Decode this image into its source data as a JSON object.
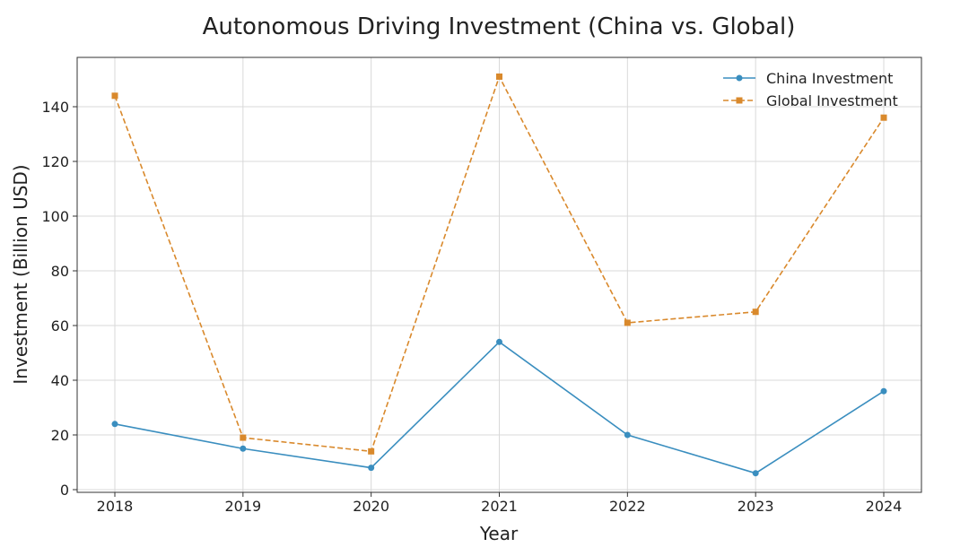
{
  "chart_data": {
    "type": "line",
    "title": "Autonomous Driving Investment (China vs. Global)",
    "xlabel": "Year",
    "ylabel": "Investment (Billion USD)",
    "x": [
      "2018",
      "2019",
      "2020",
      "2021",
      "2022",
      "2023",
      "2024"
    ],
    "ylim": [
      0,
      158
    ],
    "yticks": [
      0,
      20,
      40,
      60,
      80,
      100,
      120,
      140
    ],
    "grid": true,
    "legend_position": "top-right",
    "series": [
      {
        "name": "China Investment",
        "values": [
          24,
          15,
          8,
          54,
          20,
          6,
          36
        ],
        "color": "#3a8ebf",
        "style": "solid",
        "marker": "circle"
      },
      {
        "name": "Global Investment",
        "values": [
          144,
          19,
          14,
          151,
          61,
          65,
          136
        ],
        "color": "#d9892c",
        "style": "dashed",
        "marker": "square"
      }
    ]
  }
}
